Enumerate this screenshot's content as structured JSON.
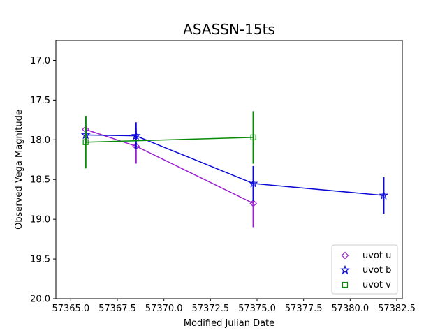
{
  "chart_data": {
    "type": "line",
    "title": "ASASSN-15ts",
    "xlabel": "Modified Julian Date",
    "ylabel": "Observed Vega Magnitude",
    "xlim": [
      57364.2,
      57382.8
    ],
    "ylim": [
      20.0,
      16.75
    ],
    "y_inverted": true,
    "x_ticks": [
      57365.0,
      57367.5,
      57370.0,
      57372.5,
      57375.0,
      57377.5,
      57380.0,
      57382.5
    ],
    "x_tick_labels": [
      "57365.0",
      "57367.5",
      "57370.0",
      "57372.5",
      "57375.0",
      "57377.5",
      "57380.0",
      "57382.5"
    ],
    "y_ticks": [
      17.0,
      17.5,
      18.0,
      18.5,
      19.0,
      19.5,
      20.0
    ],
    "y_tick_labels": [
      "17.0",
      "17.5",
      "18.0",
      "18.5",
      "19.0",
      "19.5",
      "20.0"
    ],
    "grid": false,
    "legend_position": "lower-right",
    "series": [
      {
        "name": "uvot u",
        "color": "#9a1fd0",
        "marker": "diamond",
        "x": [
          57365.8,
          57368.5,
          57374.8
        ],
        "y": [
          17.87,
          18.08,
          18.8
        ],
        "yerr": [
          0.17,
          0.22,
          0.3
        ]
      },
      {
        "name": "uvot b",
        "color": "#0a0ad6",
        "marker": "star",
        "x": [
          57365.8,
          57368.5,
          57374.8,
          57381.8
        ],
        "y": [
          17.94,
          17.95,
          18.55,
          18.7
        ],
        "yerr": [
          0.08,
          0.17,
          0.22,
          0.23
        ]
      },
      {
        "name": "uvot v",
        "color": "#078a07",
        "marker": "square",
        "x": [
          57365.8,
          57374.8
        ],
        "y": [
          18.03,
          17.97
        ],
        "yerr": [
          0.33,
          0.33
        ]
      }
    ]
  }
}
